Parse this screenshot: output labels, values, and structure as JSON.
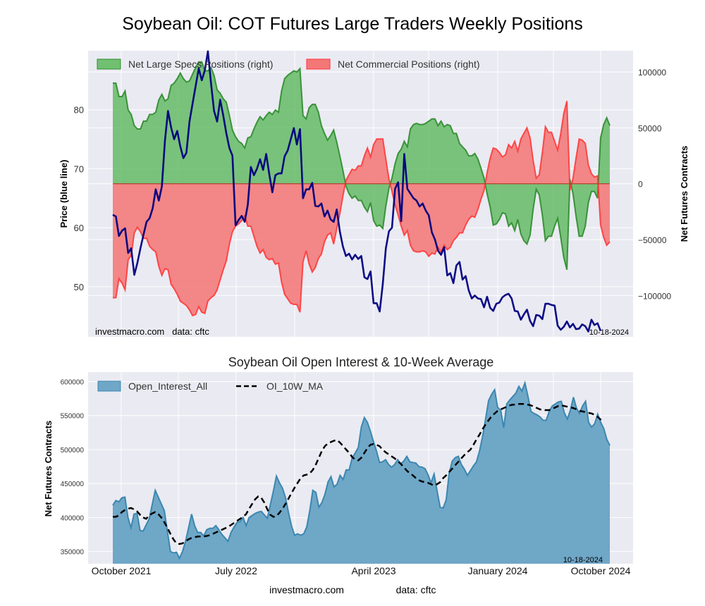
{
  "page": {
    "title": "Soybean Oil: COT Futures Large Traders Weekly Positions",
    "footer_site": "investmacro.com",
    "footer_data": "data: cftc"
  },
  "chart_data": [
    {
      "id": "positions",
      "type": "area",
      "title": "",
      "ylabel_left": "Price (blue line)",
      "ylabel_right": "Net Futures Contracts",
      "ylim_left": [
        41.5,
        90
      ],
      "yticks_left": [
        50,
        60,
        70,
        80
      ],
      "ylim_right": [
        -137000,
        119000
      ],
      "yticks_right": [
        -100000,
        -50000,
        0,
        50000,
        100000
      ],
      "ytick_labels_right": [
        "−100000",
        "−50000",
        "0",
        "50000",
        "100000"
      ],
      "grid": true,
      "legend_position": "top-left",
      "legend": [
        "Net Large Specs Positions (right)",
        "Net Commercial Positions (right)"
      ],
      "watermark_left": "investmacro.com   data: cftc",
      "watermark_right": "10-18-2024",
      "colors": {
        "specs": "#2e8b2e",
        "specs_fill": "#5cb85c",
        "commercial": "#ff3333",
        "commercial_fill": "#f47777",
        "price": "#00007f"
      },
      "series": [
        {
          "name": "Net Large Specs Positions (right)",
          "axis": "right",
          "values": [
            90000,
            90000,
            78000,
            78000,
            83000,
            66000,
            62000,
            52000,
            49000,
            49000,
            56000,
            56000,
            62000,
            62000,
            64000,
            75000,
            80000,
            74000,
            76000,
            88000,
            90000,
            94000,
            99000,
            94000,
            91000,
            92000,
            98000,
            104000,
            109000,
            109000,
            101000,
            101000,
            104000,
            97000,
            84000,
            81000,
            76000,
            73000,
            61000,
            48000,
            42000,
            38000,
            36000,
            32000,
            41000,
            42000,
            49000,
            55000,
            60000,
            57000,
            61000,
            64000,
            62000,
            66000,
            64000,
            83000,
            94000,
            97000,
            99000,
            101000,
            100000,
            103000,
            61000,
            58000,
            68000,
            71000,
            71000,
            64000,
            52000,
            45000,
            39000,
            43000,
            48000,
            37000,
            25000,
            12000,
            -2000,
            -9000,
            -13000,
            -11000,
            -15000,
            -15000,
            -21000,
            -25000,
            -17000,
            -33000,
            -38000,
            -37000,
            -40000,
            -20000,
            -4000,
            5000,
            18000,
            27000,
            31000,
            38000,
            33000,
            49000,
            53000,
            54000,
            53000,
            53000,
            54000,
            56000,
            58000,
            58000,
            52000,
            56000,
            51000,
            53000,
            52000,
            45000,
            45000,
            36000,
            33000,
            30000,
            25000,
            25000,
            27000,
            22000,
            14000,
            5000,
            -9000,
            -21000,
            -37000,
            -36000,
            -32000,
            -26000,
            -27000,
            -38000,
            -35000,
            -42000,
            -32000,
            -45000,
            -51000,
            -54000,
            -46000,
            -23000,
            -5000,
            -10000,
            -28000,
            -51000,
            -47000,
            -47000,
            -38000,
            -31000,
            -48000,
            -66000,
            -77000,
            4000,
            -9000,
            -29000,
            -47000,
            -47000,
            -38000,
            -17000,
            -7000,
            -7000,
            -13000,
            41000,
            53000,
            59000,
            52000
          ]
        },
        {
          "name": "Net Commercial Positions (right)",
          "axis": "right",
          "values": [
            -102000,
            -102000,
            -85000,
            -89000,
            -95000,
            -68000,
            -64000,
            -44000,
            -39000,
            -43000,
            -49000,
            -49000,
            -56000,
            -59000,
            -61000,
            -74000,
            -82000,
            -76000,
            -77000,
            -90000,
            -94000,
            -99000,
            -105000,
            -107000,
            -109000,
            -113000,
            -118000,
            -117000,
            -110000,
            -115000,
            -116000,
            -105000,
            -102000,
            -100000,
            -95000,
            -86000,
            -77000,
            -69000,
            -54000,
            -43000,
            -38000,
            -36000,
            -33000,
            -29000,
            -38000,
            -38000,
            -47000,
            -56000,
            -62000,
            -59000,
            -66000,
            -68000,
            -67000,
            -72000,
            -71000,
            -88000,
            -99000,
            -103000,
            -107000,
            -108000,
            -108000,
            -115000,
            -70000,
            -60000,
            -72000,
            -79000,
            -75000,
            -67000,
            -63000,
            -52000,
            -46000,
            -44000,
            -54000,
            -40000,
            -27000,
            -11000,
            3000,
            8000,
            13000,
            12000,
            16000,
            16000,
            25000,
            32000,
            24000,
            35000,
            40000,
            40000,
            40000,
            22000,
            4000,
            -7000,
            -19000,
            -28000,
            -38000,
            -46000,
            -42000,
            -55000,
            -60000,
            -61000,
            -61000,
            -60000,
            -61000,
            -65000,
            -62000,
            -63000,
            -57000,
            -61000,
            -55000,
            -59000,
            -57000,
            -51000,
            -48000,
            -44000,
            -44000,
            -37000,
            -32000,
            -29000,
            -30000,
            -23000,
            -14000,
            -6000,
            10000,
            23000,
            32000,
            31000,
            28000,
            24000,
            26000,
            35000,
            32000,
            38000,
            29000,
            40000,
            45000,
            50000,
            41000,
            21000,
            5000,
            8000,
            28000,
            51000,
            46000,
            46000,
            38000,
            30000,
            45000,
            63000,
            74000,
            -6000,
            5000,
            23000,
            40000,
            39000,
            36000,
            17000,
            9000,
            6000,
            7000,
            -37000,
            -48000,
            -55000,
            -52000
          ]
        },
        {
          "name": "Price (blue line)",
          "axis": "left",
          "values": [
            62.2,
            61.9,
            58.6,
            59.5,
            59.9,
            55.7,
            56.5,
            52.0,
            54.0,
            56.5,
            58.8,
            61.0,
            61.6,
            63.3,
            66.5,
            64.6,
            67.0,
            74.8,
            79.8,
            77.0,
            75.0,
            76.4,
            73.8,
            71.8,
            72.7,
            78.0,
            81.0,
            84.0,
            87.0,
            85.0,
            86.7,
            89.9,
            84.5,
            79.8,
            78.0,
            81.7,
            79.0,
            76.0,
            73.5,
            72.2,
            60.4,
            61.3,
            62.0,
            61.0,
            63.9,
            70.3,
            68.9,
            70.0,
            71.6,
            69.8,
            72.5,
            69.1,
            66.0,
            68.9,
            69.2,
            69.2,
            72.1,
            73.1,
            75.0,
            76.9,
            74.1,
            76.7,
            65.0,
            66.5,
            66.5,
            67.6,
            63.7,
            63.6,
            64.1,
            61.9,
            62.9,
            61.4,
            61.0,
            63.1,
            59.4,
            56.8,
            55.2,
            55.6,
            54.6,
            55.4,
            54.7,
            55.2,
            51.6,
            51.3,
            52.6,
            47.2,
            47.2,
            45.8,
            50.5,
            56.5,
            59.4,
            60.0,
            66.6,
            67.7,
            61.1,
            72.5,
            66.6,
            65.8,
            65.0,
            64.6,
            63.6,
            64.1,
            62.9,
            62.1,
            59.2,
            58.0,
            56.1,
            55.4,
            56.7,
            51.9,
            52.3,
            50.6,
            53.6,
            54.2,
            51.2,
            51.8,
            49.4,
            48.0,
            48.5,
            48.0,
            47.9,
            46.5,
            48.3,
            46.4,
            45.9,
            47.1,
            47.3,
            48.2,
            48.6,
            48.8,
            48.0,
            45.9,
            45.8,
            44.4,
            45.3,
            46.1,
            44.2,
            43.3,
            45.2,
            45.1,
            44.5,
            47.1,
            47.1,
            46.9,
            46.8,
            43.4,
            42.7,
            43.2,
            44.1,
            43.1,
            43.7,
            42.8,
            42.9,
            43.6,
            43.3,
            42.4,
            44.4,
            43.5,
            43.8,
            42.5
          ]
        }
      ],
      "x": {
        "type": "weekly",
        "start": "10-2021",
        "end": "10-18-2024"
      }
    },
    {
      "id": "open-interest",
      "type": "area",
      "title": "Soybean Oil Open Interest & 10-Week Average",
      "ylabel": "Net Futures Contracts",
      "ylim": [
        332000,
        614000
      ],
      "yticks": [
        350000,
        400000,
        450000,
        500000,
        550000,
        600000
      ],
      "grid": true,
      "legend_position": "top-left",
      "legend": [
        "Open_Interest_All",
        "OI_10W_MA"
      ],
      "watermark_right": "10-18-2024",
      "colors": {
        "oi": "#3b87b0",
        "oi_fill": "#6fa7c7",
        "ma": "#000000"
      },
      "series": [
        {
          "name": "Open_Interest_All",
          "values": [
            418000,
            425000,
            423000,
            429000,
            430000,
            400000,
            385000,
            405000,
            406000,
            381000,
            380000,
            389000,
            398000,
            419000,
            440000,
            430000,
            420000,
            410000,
            380000,
            350000,
            348000,
            349000,
            340000,
            350000,
            365000,
            385000,
            405000,
            388000,
            378000,
            378000,
            373000,
            382000,
            384000,
            384000,
            388000,
            382000,
            375000,
            370000,
            365000,
            378000,
            386000,
            393000,
            394000,
            400000,
            388000,
            400000,
            403000,
            406000,
            408000,
            409000,
            404000,
            399000,
            419000,
            439000,
            461000,
            451000,
            443000,
            429000,
            407000,
            387000,
            374000,
            376000,
            374000,
            376000,
            386000,
            410000,
            440000,
            437000,
            415000,
            422000,
            434000,
            452000,
            460000,
            445000,
            449000,
            462000,
            456000,
            470000,
            470000,
            488000,
            495000,
            503000,
            533000,
            547000,
            540000,
            527000,
            512000,
            498000,
            481000,
            482000,
            485000,
            478000,
            474000,
            478000,
            485000,
            479000,
            483000,
            490000,
            482000,
            481000,
            480000,
            475000,
            474000,
            472000,
            463000,
            451000,
            464000,
            439000,
            415000,
            414000,
            426000,
            466000,
            483000,
            488000,
            490000,
            478000,
            471000,
            462000,
            469000,
            476000,
            482000,
            498000,
            519000,
            545000,
            572000,
            581000,
            588000,
            562000,
            558000,
            532000,
            567000,
            573000,
            578000,
            583000,
            593000,
            586000,
            598000,
            578000,
            556000,
            553000,
            551000,
            548000,
            543000,
            543000,
            556000,
            564000,
            567000,
            570000,
            571000,
            554000,
            545000,
            558000,
            577000,
            561000,
            553000,
            564000,
            571000,
            540000,
            533000,
            538000,
            552000,
            540000,
            531000,
            515000,
            506000
          ]
        },
        {
          "name": "OI_10W_MA",
          "values": [
            401000,
            401000,
            403000,
            408000,
            411000,
            413000,
            414000,
            412000,
            409000,
            404000,
            400000,
            398000,
            403000,
            406000,
            408000,
            405000,
            400000,
            393000,
            385000,
            376000,
            368000,
            362000,
            361000,
            362000,
            365000,
            368000,
            370000,
            371000,
            372000,
            372000,
            372000,
            373000,
            374000,
            376000,
            378000,
            380000,
            382000,
            384000,
            386000,
            389000,
            392000,
            395000,
            398000,
            401000,
            405000,
            413000,
            420000,
            427000,
            431000,
            429000,
            422000,
            412000,
            404000,
            401000,
            402000,
            407000,
            413000,
            420000,
            428000,
            436000,
            444000,
            451000,
            458000,
            462000,
            463000,
            465000,
            470000,
            478000,
            488000,
            498000,
            505000,
            509000,
            511000,
            513000,
            514000,
            510000,
            505000,
            500000,
            495000,
            489000,
            485000,
            484000,
            488000,
            495000,
            502000,
            507000,
            508000,
            507000,
            505000,
            500000,
            496000,
            493000,
            490000,
            487000,
            483000,
            479000,
            474000,
            469000,
            465000,
            462000,
            458000,
            455000,
            453000,
            452000,
            451000,
            449000,
            447000,
            449000,
            452000,
            458000,
            462000,
            467000,
            472000,
            477000,
            482000,
            487000,
            492000,
            496000,
            500000,
            507000,
            515000,
            522000,
            530000,
            537000,
            543000,
            549000,
            553000,
            557000,
            559000,
            561000,
            563000,
            565000,
            566000,
            566000,
            567000,
            567000,
            567000,
            566000,
            565000,
            563000,
            561000,
            559000,
            558000,
            558000,
            558000,
            560000,
            562000,
            564000,
            565000,
            564000,
            563000,
            562000,
            561000,
            559000,
            557000,
            556000,
            555000,
            554000,
            553000,
            551000,
            548000,
            544000,
            541000
          ]
        }
      ],
      "xtick_labels": [
        "October 2021",
        "July 2022",
        "April 2023",
        "January 2024",
        "October 2024"
      ],
      "x": {
        "type": "weekly",
        "start": "10-2021",
        "end": "10-18-2024"
      }
    }
  ]
}
